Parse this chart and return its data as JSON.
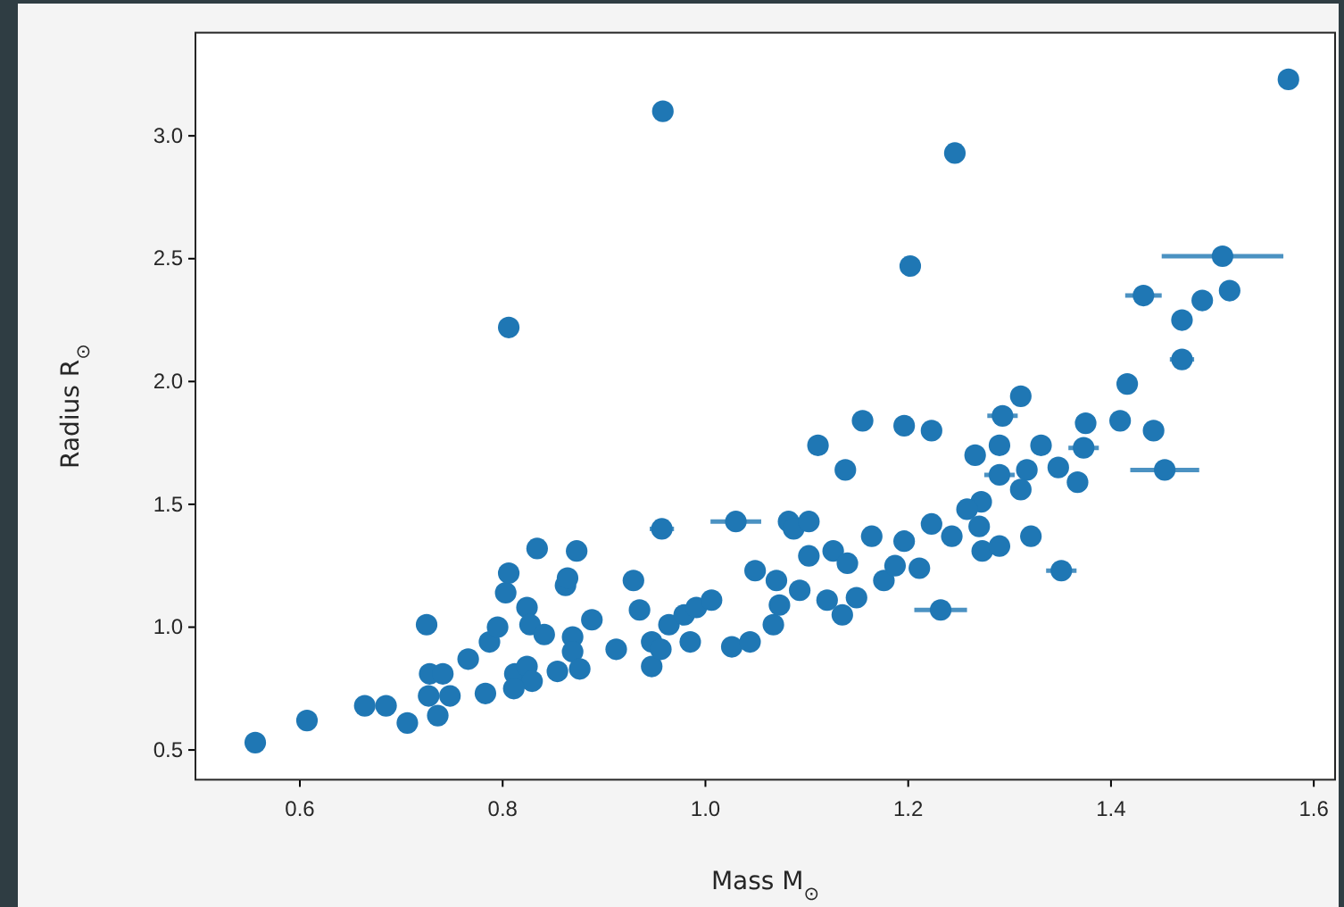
{
  "chart_data": {
    "type": "scatter",
    "xlabel": "Mass  M$_{⊙}$",
    "ylabel": "Radius  R$_{⊙}$",
    "xlim": [
      0.497,
      1.621
    ],
    "ylim": [
      0.379,
      3.42
    ],
    "xticks": [
      0.6,
      0.8,
      {
        "value": 1,
        "label": "1.0"
      },
      1.2,
      1.4,
      1.6
    ],
    "yticks": [
      0.5,
      {
        "value": 1,
        "label": "1.0"
      },
      1.5,
      {
        "value": 2,
        "label": "2.0"
      },
      2.5,
      {
        "value": 3,
        "label": "3.0"
      }
    ],
    "marker": "circle",
    "series": [
      {
        "color": "#1f77b4",
        "x": [
          0.556,
          0.607,
          0.664,
          0.685,
          0.706,
          0.725,
          0.728,
          0.736,
          0.727,
          0.748,
          0.741,
          0.766,
          0.783,
          0.787,
          0.795,
          0.803,
          0.806,
          0.834,
          0.824,
          0.827,
          0.841,
          0.812,
          0.824,
          0.829,
          0.811,
          0.854,
          0.862,
          0.864,
          0.873,
          0.869,
          0.869,
          1.111,
          1.138,
          0.957,
          1.03,
          1.082,
          1.087,
          1.102,
          0.929,
          0.888,
          0.876,
          0.912,
          0.935,
          0.947,
          0.947,
          0.956,
          0.964,
          0.979,
          0.991,
          1.006,
          0.985,
          1.026,
          1.044,
          1.049,
          1.07,
          1.067,
          1.073,
          1.093,
          1.102,
          1.126,
          1.14,
          1.149,
          1.135,
          1.12,
          1.164,
          1.176,
          1.187,
          1.196,
          1.211,
          1.223,
          1.243,
          1.232,
          1.432,
          1.49,
          1.517,
          1.47,
          1.47,
          1.416,
          1.409,
          1.442,
          1.453,
          1.311,
          1.293,
          1.375,
          1.373,
          1.266,
          1.29,
          1.331,
          1.348,
          1.367,
          1.29,
          1.317,
          1.311,
          1.272,
          1.258,
          1.27,
          1.273,
          1.29,
          1.321,
          1.351,
          1.575,
          1.246,
          1.202,
          1.51,
          0.958,
          0.806,
          1.155,
          1.196,
          1.223
        ],
        "values": [
          0.53,
          0.62,
          0.68,
          0.68,
          0.61,
          1.01,
          0.81,
          0.64,
          0.72,
          0.72,
          0.81,
          0.87,
          0.73,
          0.94,
          1.0,
          1.14,
          1.22,
          1.32,
          1.08,
          1.01,
          0.97,
          0.81,
          0.84,
          0.78,
          0.75,
          0.82,
          1.17,
          1.2,
          1.31,
          0.96,
          0.9,
          1.74,
          1.64,
          1.4,
          1.43,
          1.43,
          1.4,
          1.43,
          1.19,
          1.03,
          0.83,
          0.91,
          1.07,
          0.94,
          0.84,
          0.91,
          1.01,
          1.05,
          1.08,
          1.11,
          0.94,
          0.92,
          0.94,
          1.23,
          1.19,
          1.01,
          1.09,
          1.15,
          1.29,
          1.31,
          1.26,
          1.12,
          1.05,
          1.11,
          1.37,
          1.19,
          1.25,
          1.35,
          1.24,
          1.42,
          1.37,
          1.07,
          2.35,
          2.33,
          2.37,
          2.25,
          2.09,
          1.99,
          1.84,
          1.8,
          1.64,
          1.94,
          1.86,
          1.83,
          1.73,
          1.7,
          1.74,
          1.74,
          1.65,
          1.59,
          1.62,
          1.64,
          1.56,
          1.51,
          1.48,
          1.41,
          1.31,
          1.33,
          1.37,
          1.23,
          3.23,
          2.93,
          2.47,
          2.51,
          3.1,
          2.22,
          1.84,
          1.82,
          1.8
        ],
        "xerrors": [
          null,
          null,
          null,
          null,
          null,
          0.01,
          null,
          null,
          null,
          null,
          null,
          null,
          null,
          null,
          null,
          null,
          null,
          null,
          null,
          null,
          null,
          null,
          null,
          null,
          null,
          null,
          null,
          null,
          null,
          null,
          null,
          null,
          null,
          0.012,
          0.025,
          null,
          null,
          null,
          null,
          null,
          null,
          null,
          null,
          null,
          null,
          null,
          null,
          null,
          null,
          null,
          null,
          null,
          null,
          null,
          null,
          null,
          null,
          null,
          null,
          null,
          null,
          null,
          null,
          null,
          null,
          null,
          null,
          null,
          null,
          null,
          null,
          0.026,
          0.018,
          null,
          null,
          null,
          0.012,
          null,
          null,
          0.01,
          0.034,
          null,
          0.015,
          null,
          0.015,
          null,
          null,
          null,
          null,
          null,
          0.015,
          null,
          null,
          null,
          null,
          null,
          null,
          null,
          null,
          0.015,
          null,
          null,
          0.01,
          0.06,
          null,
          null,
          null,
          null,
          null
        ]
      }
    ]
  }
}
